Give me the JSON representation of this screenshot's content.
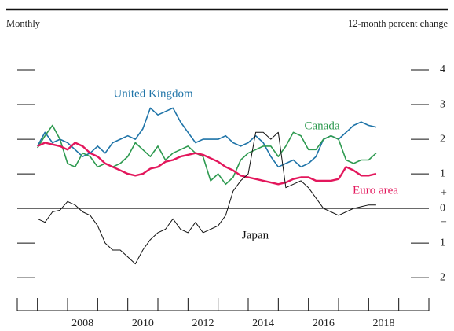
{
  "chart_data": {
    "type": "line",
    "left_note": "Monthly",
    "right_note": "12-month percent change",
    "x": [
      2007,
      2007.25,
      2007.5,
      2007.75,
      2008,
      2008.25,
      2008.5,
      2008.75,
      2009,
      2009.25,
      2009.5,
      2009.75,
      2010,
      2010.25,
      2010.5,
      2010.75,
      2011,
      2011.25,
      2011.5,
      2011.75,
      2012,
      2012.25,
      2012.5,
      2012.75,
      2013,
      2013.25,
      2013.5,
      2013.75,
      2014,
      2014.25,
      2014.5,
      2014.75,
      2015,
      2015.25,
      2015.5,
      2015.75,
      2016,
      2016.25,
      2016.5,
      2016.75,
      2017,
      2017.25,
      2017.5,
      2017.75,
      2018,
      2018.25
    ],
    "series": [
      {
        "name": "United Kingdom",
        "color": "#1f74a8",
        "values": [
          1.8,
          2.2,
          1.9,
          2.0,
          1.9,
          1.7,
          1.5,
          1.6,
          1.8,
          1.6,
          1.9,
          2.0,
          2.1,
          2.0,
          2.3,
          2.9,
          2.7,
          2.8,
          2.9,
          2.5,
          2.2,
          1.9,
          2.0,
          2.0,
          2.0,
          2.1,
          1.9,
          1.8,
          1.9,
          2.1,
          1.9,
          1.5,
          1.2,
          1.3,
          1.4,
          1.2,
          1.3,
          1.5,
          2.0,
          2.1,
          2.0,
          2.2,
          2.4,
          2.5,
          2.4,
          2.35
        ]
      },
      {
        "name": "Canada",
        "color": "#2e9a50",
        "values": [
          1.75,
          2.1,
          2.4,
          2.0,
          1.3,
          1.2,
          1.6,
          1.5,
          1.2,
          1.3,
          1.2,
          1.3,
          1.5,
          1.9,
          1.7,
          1.5,
          1.8,
          1.4,
          1.6,
          1.7,
          1.8,
          1.6,
          1.5,
          0.8,
          1.0,
          0.7,
          0.9,
          1.4,
          1.6,
          1.7,
          1.8,
          1.8,
          1.5,
          1.8,
          2.2,
          2.1,
          1.7,
          1.7,
          2.0,
          2.1,
          2.0,
          1.4,
          1.3,
          1.4,
          1.4,
          1.6
        ]
      },
      {
        "name": "Euro area",
        "color": "#e3175c",
        "values": [
          1.8,
          1.9,
          1.85,
          1.8,
          1.7,
          1.9,
          1.8,
          1.6,
          1.5,
          1.3,
          1.2,
          1.1,
          1.0,
          0.95,
          1.0,
          1.15,
          1.2,
          1.35,
          1.4,
          1.5,
          1.55,
          1.6,
          1.55,
          1.45,
          1.35,
          1.2,
          1.1,
          0.95,
          0.9,
          0.85,
          0.8,
          0.75,
          0.7,
          0.75,
          0.85,
          0.9,
          0.9,
          0.8,
          0.8,
          0.8,
          0.85,
          1.2,
          1.1,
          0.95,
          0.95,
          1.0
        ]
      },
      {
        "name": "Japan",
        "color": "#111111",
        "values": [
          -0.3,
          -0.4,
          -0.1,
          -0.05,
          0.2,
          0.1,
          -0.1,
          -0.2,
          -0.5,
          -1.0,
          -1.2,
          -1.2,
          -1.4,
          -1.6,
          -1.2,
          -0.9,
          -0.7,
          -0.6,
          -0.3,
          -0.6,
          -0.7,
          -0.4,
          -0.7,
          -0.6,
          -0.5,
          -0.2,
          0.5,
          0.8,
          1.0,
          2.2,
          2.2,
          2.0,
          2.2,
          0.6,
          0.7,
          0.8,
          0.6,
          0.3,
          0.0,
          -0.1,
          -0.2,
          -0.1,
          0.0,
          0.05,
          0.1,
          0.1
        ]
      }
    ],
    "xlim": [
      2006.33,
      2020
    ],
    "xticks": [
      2007,
      2008,
      2009,
      2010,
      2011,
      2012,
      2013,
      2014,
      2015,
      2016,
      2017,
      2018,
      2019
    ],
    "xtick_labels": [
      {
        "value": 2008.5,
        "label": "2008"
      },
      {
        "value": 2010.5,
        "label": "2010"
      },
      {
        "value": 2012.5,
        "label": "2012"
      },
      {
        "value": 2014.5,
        "label": "2014"
      },
      {
        "value": 2016.5,
        "label": "2016"
      },
      {
        "value": 2018.5,
        "label": "2018"
      }
    ],
    "ylim": [
      -2.95,
      4.5
    ],
    "yticks": [
      4,
      3,
      2,
      1,
      0,
      {
        "value": -1,
        "label": "1"
      },
      {
        "value": -2,
        "label": "2"
      }
    ],
    "sign_labels": [
      "+",
      "−"
    ]
  }
}
